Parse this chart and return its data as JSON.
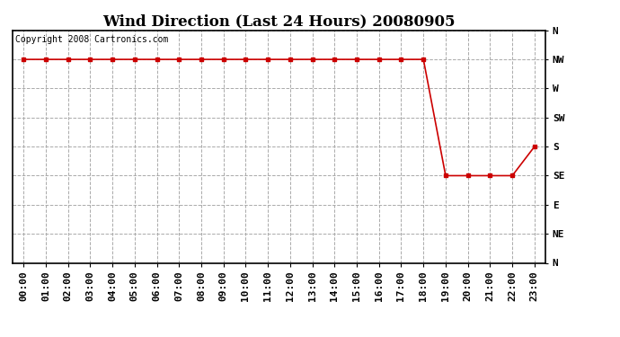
{
  "title": "Wind Direction (Last 24 Hours) 20080905",
  "copyright_text": "Copyright 2008 Cartronics.com",
  "ytick_labels": [
    "N",
    "NW",
    "W",
    "SW",
    "S",
    "SE",
    "E",
    "NE",
    "N"
  ],
  "ytick_values": [
    8,
    7,
    6,
    5,
    4,
    3,
    2,
    1,
    0
  ],
  "xtick_labels": [
    "00:00",
    "01:00",
    "02:00",
    "03:00",
    "04:00",
    "05:00",
    "06:00",
    "07:00",
    "08:00",
    "09:00",
    "10:00",
    "11:00",
    "12:00",
    "13:00",
    "14:00",
    "15:00",
    "16:00",
    "17:00",
    "18:00",
    "19:00",
    "20:00",
    "21:00",
    "22:00",
    "23:00"
  ],
  "x_values": [
    0,
    1,
    2,
    3,
    4,
    5,
    6,
    7,
    8,
    9,
    10,
    11,
    12,
    13,
    14,
    15,
    16,
    17,
    18,
    19,
    20,
    21,
    22,
    23
  ],
  "y_values": [
    7,
    7,
    7,
    7,
    7,
    7,
    7,
    7,
    7,
    7,
    7,
    7,
    7,
    7,
    7,
    7,
    7,
    7,
    7,
    3,
    3,
    3,
    3,
    4
  ],
  "line_color": "#cc0000",
  "marker": "s",
  "marker_size": 3,
  "background_color": "#ffffff",
  "grid_color": "#aaaaaa",
  "grid_linestyle": "--",
  "ylim": [
    0,
    8
  ],
  "xlim": [
    -0.5,
    23.5
  ],
  "title_fontsize": 12,
  "tick_fontsize": 8,
  "copyright_fontsize": 7,
  "figsize": [
    6.9,
    3.75
  ],
  "dpi": 100
}
